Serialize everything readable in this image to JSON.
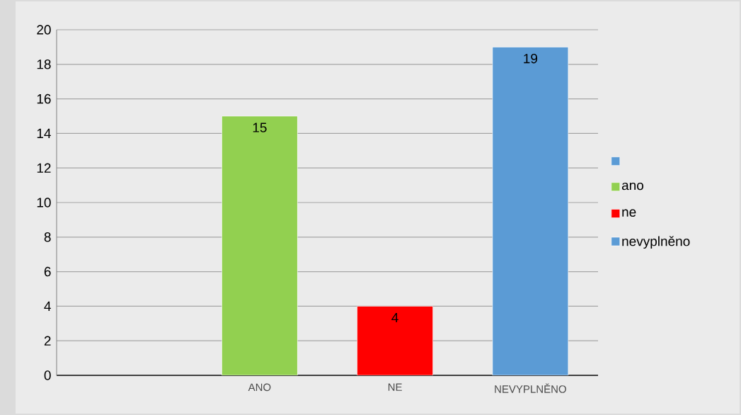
{
  "chart_data": {
    "type": "bar",
    "categories": [
      null,
      "ANO",
      "NE",
      "NEVYPLNĚNO"
    ],
    "series": [
      {
        "color": "#5b9bd5",
        "values": [
          null,
          null,
          null,
          null
        ]
      },
      {
        "name": "ano",
        "color": "#92d050",
        "values": [
          null,
          15,
          null,
          null
        ]
      },
      {
        "name": "ne",
        "color": "#ff0000",
        "values": [
          null,
          null,
          4,
          null
        ]
      },
      {
        "name": "nevyplněno",
        "color": "#5b9bd5",
        "values": [
          null,
          null,
          null,
          19
        ]
      }
    ],
    "ylim": [
      0,
      20
    ],
    "yticks": [
      0,
      2,
      4,
      6,
      8,
      10,
      12,
      14,
      16,
      18,
      20
    ],
    "grid": "y",
    "legend": "right",
    "data_labels": true
  }
}
